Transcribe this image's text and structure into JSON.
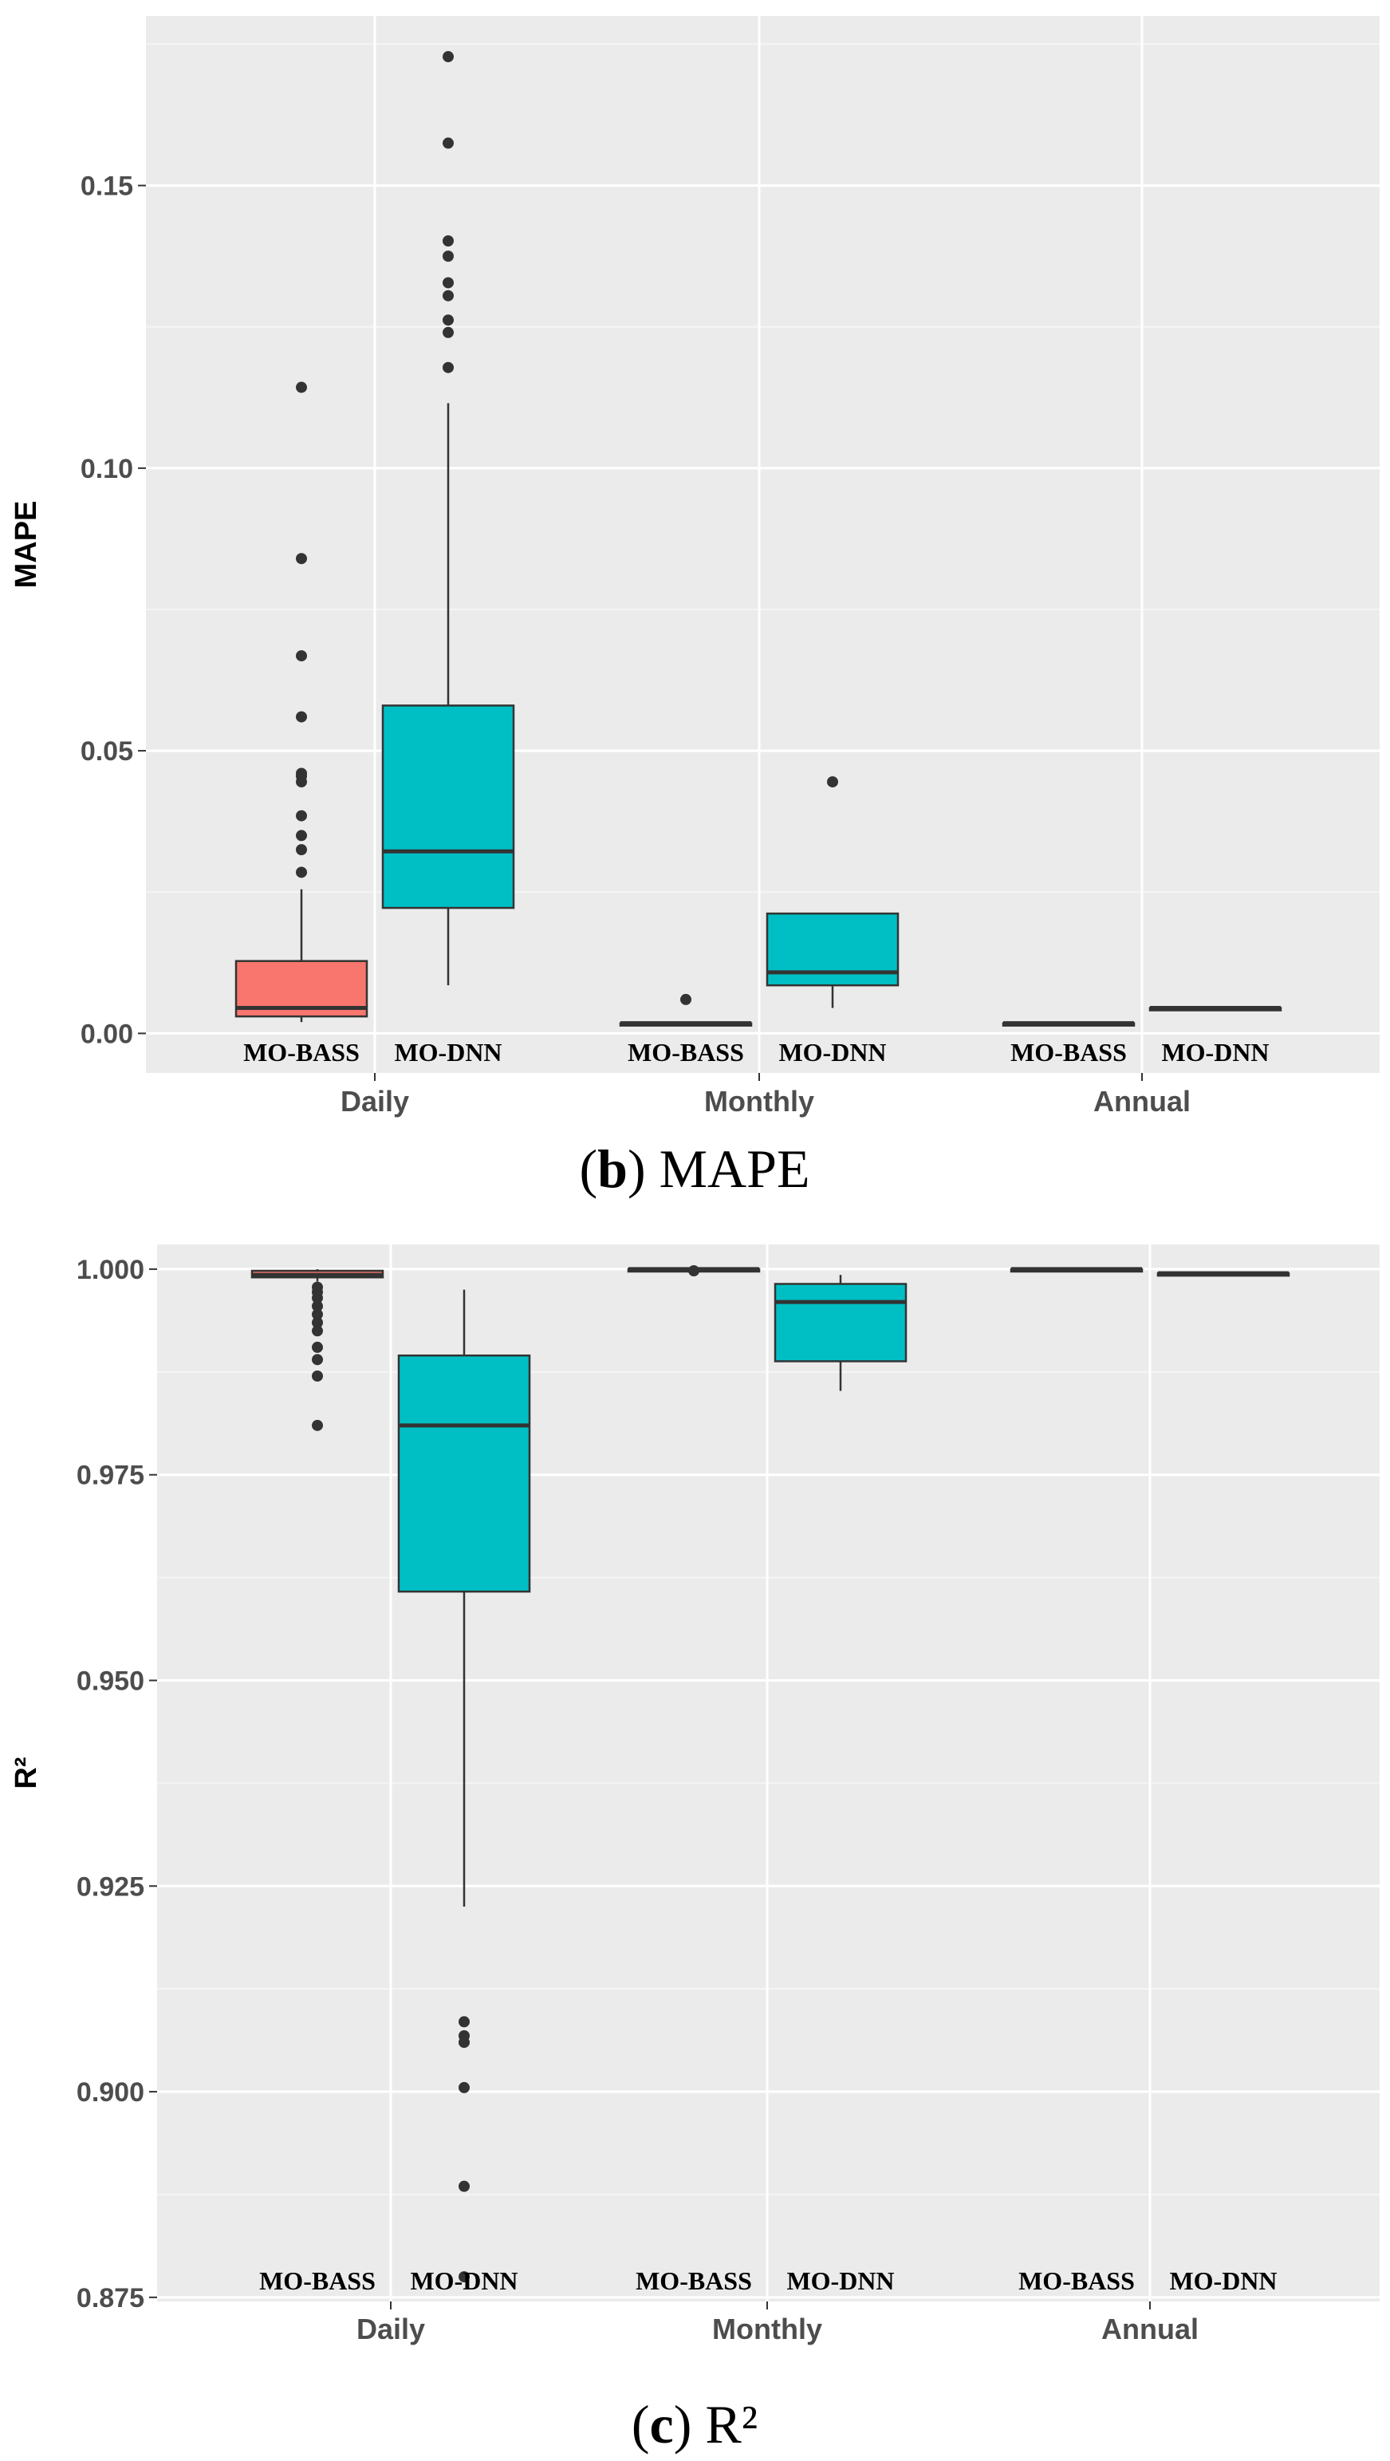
{
  "chart_data": [
    {
      "type": "boxplot",
      "panel": "b",
      "caption_letter": "b",
      "caption_text": "MAPE",
      "ylabel": "MAPE",
      "xlabel": "",
      "ylim": [
        -0.007,
        0.18
      ],
      "yticks": [
        0.0,
        0.05,
        0.1,
        0.15
      ],
      "ytick_labels": [
        "0.00",
        "0.05",
        "0.10",
        "0.15"
      ],
      "categories": [
        "Daily",
        "Monthly",
        "Annual"
      ],
      "group_labels": [
        "MO-BASS",
        "MO-DNN"
      ],
      "colors": {
        "MO-BASS": "#F8766D",
        "MO-DNN": "#00BFC4"
      },
      "series": [
        {
          "category": "Daily",
          "group": "MO-BASS",
          "fill": "#F8766D",
          "whisker_low": 0.002,
          "q1": 0.003,
          "median": 0.0045,
          "q3": 0.0128,
          "whisker_high": 0.0255,
          "outliers": [
            0.0285,
            0.0325,
            0.035,
            0.0385,
            0.0445,
            0.0455,
            0.046,
            0.056,
            0.0668,
            0.084,
            0.1143
          ]
        },
        {
          "category": "Daily",
          "group": "MO-DNN",
          "fill": "#00BFC4",
          "whisker_low": 0.0085,
          "q1": 0.0222,
          "median": 0.0322,
          "q3": 0.058,
          "whisker_high": 0.1115,
          "outliers": [
            0.1178,
            0.124,
            0.1262,
            0.1305,
            0.1328,
            0.1375,
            0.1402,
            0.1575,
            0.1728
          ]
        },
        {
          "category": "Monthly",
          "group": "MO-BASS",
          "fill": "#00BFC4",
          "whisker_low": 0.0018,
          "q1": 0.0018,
          "median": 0.0018,
          "q3": 0.0018,
          "whisker_high": 0.0018,
          "outliers": [
            0.006
          ]
        },
        {
          "category": "Monthly",
          "group": "MO-DNN",
          "fill": "#00BFC4",
          "whisker_low": 0.0045,
          "q1": 0.0085,
          "median": 0.0108,
          "q3": 0.0212,
          "whisker_high": 0.0212,
          "outliers": [
            0.0445
          ]
        },
        {
          "category": "Annual",
          "group": "MO-BASS",
          "fill": "#00BFC4",
          "whisker_low": 0.0018,
          "q1": 0.0018,
          "median": 0.0018,
          "q3": 0.0018,
          "whisker_high": 0.0018,
          "outliers": []
        },
        {
          "category": "Annual",
          "group": "MO-DNN",
          "fill": "#00BFC4",
          "whisker_low": 0.0045,
          "q1": 0.0045,
          "median": 0.0045,
          "q3": 0.0045,
          "whisker_high": 0.0045,
          "outliers": []
        }
      ]
    },
    {
      "type": "boxplot",
      "panel": "c",
      "caption_letter": "c",
      "caption_text": "R²",
      "ylabel": "R²",
      "xlabel": "",
      "ylim": [
        0.8745,
        1.003
      ],
      "yticks": [
        0.875,
        0.9,
        0.925,
        0.95,
        0.975,
        1.0
      ],
      "ytick_labels": [
        "0.875",
        "0.900",
        "0.925",
        "0.950",
        "0.975",
        "1.000"
      ],
      "categories": [
        "Daily",
        "Monthly",
        "Annual"
      ],
      "group_labels": [
        "MO-BASS",
        "MO-DNN"
      ],
      "colors": {
        "MO-BASS": "#F8766D",
        "MO-DNN": "#00BFC4"
      },
      "series": [
        {
          "category": "Daily",
          "group": "MO-BASS",
          "fill": "#F8766D",
          "whisker_low": 0.9985,
          "q1": 0.999,
          "median": 0.9993,
          "q3": 0.9998,
          "whisker_high": 1.0,
          "outliers": [
            0.981,
            0.987,
            0.989,
            0.9905,
            0.9925,
            0.9935,
            0.9945,
            0.9955,
            0.9965,
            0.9972,
            0.9978
          ]
        },
        {
          "category": "Daily",
          "group": "MO-DNN",
          "fill": "#00BFC4",
          "whisker_low": 0.9225,
          "q1": 0.9608,
          "median": 0.981,
          "q3": 0.9895,
          "whisker_high": 0.9975,
          "outliers": [
            0.9085,
            0.9068,
            0.906,
            0.9005,
            0.8885,
            0.8775
          ]
        },
        {
          "category": "Monthly",
          "group": "MO-BASS",
          "fill": "#00BFC4",
          "whisker_low": 1.0,
          "q1": 1.0,
          "median": 1.0,
          "q3": 1.0,
          "whisker_high": 1.0,
          "outliers": [
            0.9998
          ]
        },
        {
          "category": "Monthly",
          "group": "MO-DNN",
          "fill": "#00BFC4",
          "whisker_low": 0.9852,
          "q1": 0.9888,
          "median": 0.996,
          "q3": 0.9982,
          "whisker_high": 0.9993,
          "outliers": []
        },
        {
          "category": "Annual",
          "group": "MO-BASS",
          "fill": "#00BFC4",
          "whisker_low": 1.0,
          "q1": 1.0,
          "median": 1.0,
          "q3": 1.0,
          "whisker_high": 1.0,
          "outliers": []
        },
        {
          "category": "Annual",
          "group": "MO-DNN",
          "fill": "#00BFC4",
          "whisker_low": 0.9995,
          "q1": 0.9995,
          "median": 0.9995,
          "q3": 0.9995,
          "whisker_high": 0.9995,
          "outliers": []
        }
      ]
    }
  ]
}
